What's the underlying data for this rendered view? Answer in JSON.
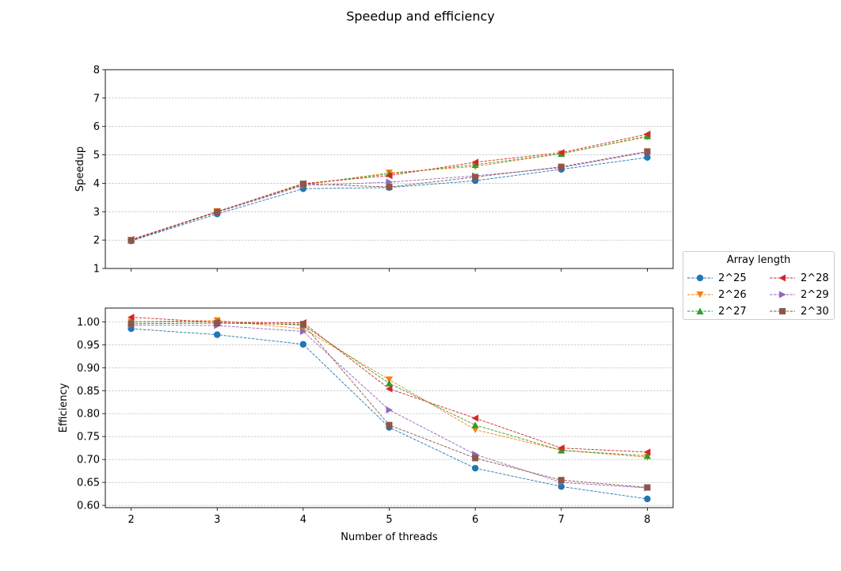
{
  "figure": {
    "title": "Speedup and efficiency"
  },
  "chart_data": [
    {
      "type": "line",
      "ylabel": "Speedup",
      "xlabel": "",
      "x": [
        2,
        3,
        4,
        5,
        6,
        7,
        8
      ],
      "ylim": [
        1,
        8
      ],
      "yticks": [
        "1",
        "2",
        "3",
        "4",
        "5",
        "6",
        "7",
        "8"
      ],
      "grid": "y-dashed",
      "series": [
        {
          "name": "2^25",
          "values": [
            1.97,
            2.92,
            3.81,
            3.85,
            4.09,
            4.49,
            4.91
          ]
        },
        {
          "name": "2^26",
          "values": [
            2.0,
            3.01,
            3.94,
            4.37,
            4.59,
            5.04,
            5.64
          ]
        },
        {
          "name": "2^27",
          "values": [
            2.0,
            3.0,
            3.97,
            4.33,
            4.65,
            5.04,
            5.66
          ]
        },
        {
          "name": "2^28",
          "values": [
            2.02,
            3.0,
            3.99,
            4.27,
            4.74,
            5.08,
            5.73
          ]
        },
        {
          "name": "2^29",
          "values": [
            1.99,
            2.98,
            3.92,
            4.04,
            4.26,
            4.55,
            5.1
          ]
        },
        {
          "name": "2^30",
          "values": [
            1.99,
            2.99,
            3.98,
            3.87,
            4.22,
            4.58,
            5.12
          ]
        }
      ]
    },
    {
      "type": "line",
      "ylabel": "Efficiency",
      "xlabel": "Number of threads",
      "x": [
        2,
        3,
        4,
        5,
        6,
        7,
        8
      ],
      "xticks": [
        "2",
        "3",
        "4",
        "5",
        "6",
        "7",
        "8"
      ],
      "ylim": [
        0.595,
        1.03
      ],
      "yticks": [
        "0.60",
        "0.65",
        "0.70",
        "0.75",
        "0.80",
        "0.85",
        "0.90",
        "0.95",
        "1.00"
      ],
      "grid": "y-dashed",
      "series": [
        {
          "name": "2^25",
          "values": [
            0.985,
            0.972,
            0.951,
            0.77,
            0.681,
            0.641,
            0.614
          ]
        },
        {
          "name": "2^26",
          "values": [
            1.0,
            1.003,
            0.985,
            0.874,
            0.765,
            0.72,
            0.705
          ]
        },
        {
          "name": "2^27",
          "values": [
            1.0,
            1.0,
            0.993,
            0.866,
            0.775,
            0.72,
            0.708
          ]
        },
        {
          "name": "2^28",
          "values": [
            1.01,
            0.999,
            0.998,
            0.854,
            0.79,
            0.725,
            0.716
          ]
        },
        {
          "name": "2^29",
          "values": [
            0.993,
            0.992,
            0.979,
            0.808,
            0.711,
            0.65,
            0.638
          ]
        },
        {
          "name": "2^30",
          "values": [
            0.996,
            0.997,
            0.995,
            0.775,
            0.703,
            0.655,
            0.639
          ]
        }
      ]
    }
  ],
  "legend": {
    "title": "Array length",
    "placement": "right, between the two plots",
    "columns": 2,
    "items": [
      {
        "label": "2^25",
        "color": "#1f77b4",
        "marker": "circle"
      },
      {
        "label": "2^26",
        "color": "#ff7f0e",
        "marker": "triangle-down"
      },
      {
        "label": "2^27",
        "color": "#2ca02c",
        "marker": "triangle-up"
      },
      {
        "label": "2^28",
        "color": "#d62728",
        "marker": "triangle-left"
      },
      {
        "label": "2^29",
        "color": "#9467bd",
        "marker": "triangle-right"
      },
      {
        "label": "2^30",
        "color": "#8c564b",
        "marker": "square"
      }
    ]
  }
}
